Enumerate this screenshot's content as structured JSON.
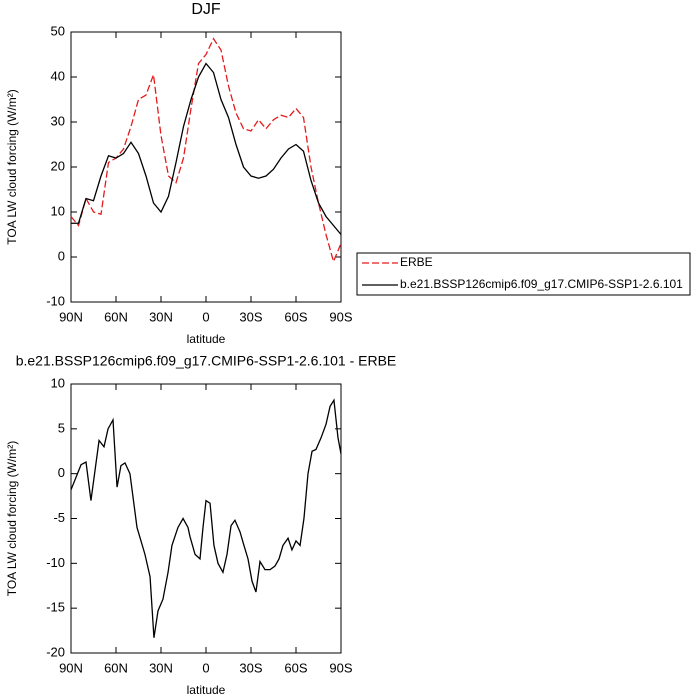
{
  "chart_data": [
    {
      "type": "line",
      "title": "DJF",
      "xlabel": "latitude",
      "ylabel": "TOA LW cloud forcing (W/m²)",
      "xlim": [
        90,
        -90
      ],
      "xticks": [
        {
          "value": 90,
          "label": "90N"
        },
        {
          "value": 60,
          "label": "60N"
        },
        {
          "value": 30,
          "label": "30N"
        },
        0,
        {
          "value": -30,
          "label": "30S"
        },
        {
          "value": -60,
          "label": "60S"
        },
        {
          "value": -90,
          "label": "90S"
        }
      ],
      "ylim": [
        -10,
        50
      ],
      "yticks": [
        -10,
        0,
        10,
        20,
        30,
        40,
        50
      ],
      "legend": "right",
      "x": [
        90,
        85,
        80,
        75,
        70,
        65,
        60,
        55,
        50,
        45,
        40,
        35,
        30,
        25,
        20,
        15,
        10,
        5,
        0,
        -5,
        -10,
        -15,
        -20,
        -25,
        -30,
        -35,
        -40,
        -45,
        -50,
        -55,
        -60,
        -65,
        -70,
        -75,
        -80,
        -85,
        -90
      ],
      "series": [
        {
          "name": "ERBE",
          "color": "#e41a1c",
          "linestyle": "dashed",
          "values": [
            9,
            7,
            13,
            10,
            9.5,
            21,
            22,
            24,
            29,
            35,
            36,
            40.5,
            27,
            18,
            16.5,
            22,
            33,
            43,
            45,
            48.5,
            46,
            38,
            32,
            28.5,
            28,
            30.5,
            28.5,
            30.5,
            31.5,
            31,
            33,
            31,
            20,
            12,
            5,
            -1,
            3
          ]
        },
        {
          "name": "b.e21.BSSP126cmip6.f09_g17.CMIP6-SSP1-2.6.101",
          "color": "#000000",
          "linestyle": "solid",
          "values": [
            7.5,
            7.5,
            13,
            12.5,
            18,
            22.5,
            22,
            23,
            25.5,
            23,
            18,
            12,
            10,
            13.5,
            21,
            29,
            35,
            40,
            43,
            41,
            35,
            31,
            25,
            20,
            18,
            17.5,
            18,
            19.5,
            22,
            24,
            25,
            23.5,
            17,
            12,
            9,
            7,
            5
          ]
        }
      ]
    },
    {
      "type": "line",
      "title": "b.e21.BSSP126cmip6.f09_g17.CMIP6-SSP1-2.6.101 - ERBE",
      "xlabel": "latitude",
      "ylabel": "TOA LW cloud forcing (W/m²)",
      "xlim": [
        90,
        -90
      ],
      "xticks": [
        {
          "value": 90,
          "label": "90N"
        },
        {
          "value": 60,
          "label": "60N"
        },
        {
          "value": 30,
          "label": "30N"
        },
        0,
        {
          "value": -30,
          "label": "30S"
        },
        {
          "value": -60,
          "label": "60S"
        },
        {
          "value": -90,
          "label": "90S"
        }
      ],
      "ylim": [
        -20,
        10
      ],
      "yticks": [
        -20,
        -15,
        -10,
        -5,
        0,
        5,
        10
      ],
      "x": [
        90,
        83.3,
        80,
        76.7,
        71.3,
        68,
        65.3,
        62,
        59.3,
        56.7,
        54,
        50.7,
        46,
        40.7,
        37.3,
        34.7,
        32,
        28.7,
        25.3,
        22.7,
        18.7,
        15.3,
        12,
        10.7,
        7.3,
        4,
        2,
        0,
        -2.7,
        -5.3,
        -8,
        -11.3,
        -14,
        -16.7,
        -19.3,
        -22.7,
        -25.3,
        -28,
        -30.7,
        -33.3,
        -36,
        -39.3,
        -42.7,
        -46,
        -48.7,
        -51.3,
        -54.7,
        -57.3,
        -60,
        -62.7,
        -65.3,
        -68,
        -70.7,
        -73.3,
        -76.7,
        -80,
        -82.7,
        -85.3,
        -88,
        -90
      ],
      "series": [
        {
          "name": "b.e21.BSSP126cmip6.f09_g17.CMIP6-SSP1-2.6.101 - ERBE",
          "color": "#000000",
          "linestyle": "solid",
          "values": [
            -1.8,
            1,
            1.3,
            -3,
            3.7,
            3,
            5,
            6,
            -1.5,
            0.9,
            1.2,
            0,
            -6,
            -9,
            -11.5,
            -18.3,
            -15.3,
            -14,
            -11,
            -8,
            -6,
            -5,
            -6,
            -7,
            -9,
            -9.5,
            -6,
            -3,
            -3.3,
            -8,
            -10,
            -11,
            -9,
            -5.8,
            -5.2,
            -6.5,
            -8,
            -9.5,
            -12,
            -13.2,
            -9.8,
            -10.7,
            -10.7,
            -10.3,
            -9.5,
            -8,
            -7.2,
            -8.5,
            -7.5,
            -8,
            -5,
            0,
            2.5,
            2.7,
            4,
            5.5,
            7.5,
            8.2,
            4,
            2.2
          ]
        }
      ]
    }
  ]
}
